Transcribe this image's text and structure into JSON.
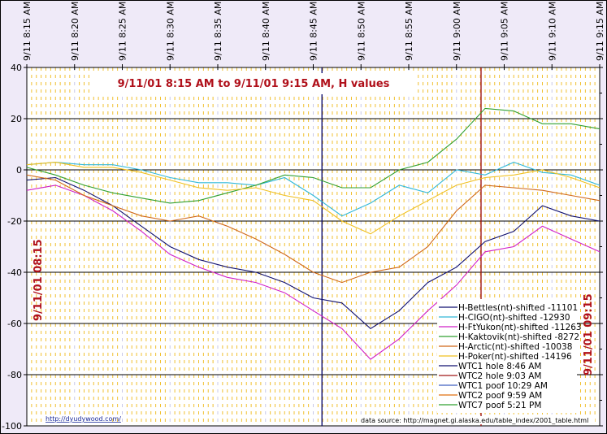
{
  "chart_data": {
    "type": "line",
    "title": "9/11/01 8:15 AM  to  9/11/01 9:15 AM, H values",
    "xlabel": "",
    "ylabel": "",
    "ylim": [
      -100,
      40
    ],
    "yticks": [
      "40",
      "20",
      "0",
      "-20",
      "-40",
      "-60",
      "-80",
      "-100"
    ],
    "xticks": [
      "9/11 8:15 AM",
      "9/11 8:20 AM",
      "9/11 8:25 AM",
      "9/11 8:30 AM",
      "9/11 8:35 AM",
      "9/11 8:40 AM",
      "9/11 8:45 AM",
      "9/11 8:50 AM",
      "9/11 8:55 AM",
      "9/11 9:00 AM",
      "9/11 9:05 AM",
      "9/11 9:10 AM",
      "9/11 9:15 AM"
    ],
    "grid": true,
    "legend_position": "lower-right",
    "left_label": "9/11/01 08:15",
    "right_label": "9/11/01 09:15",
    "x_minutes": [
      0,
      3,
      6,
      9,
      12,
      15,
      18,
      21,
      24,
      27,
      30,
      33,
      36,
      39,
      42,
      45,
      48,
      51,
      54,
      57,
      60
    ],
    "series": [
      {
        "name": "H-Bettles(nt)-shifted -11101",
        "color": "#101070",
        "values": [
          -4,
          -3,
          -8,
          -14,
          -22,
          -30,
          -35,
          -38,
          -40,
          -44,
          -50,
          -52,
          -62,
          -55,
          -44,
          -38,
          -28,
          -24,
          -14,
          -18,
          -20
        ]
      },
      {
        "name": "H-CIGO(nt)-shifted -12930",
        "color": "#30b8d8",
        "values": [
          2,
          3,
          2,
          2,
          0,
          -3,
          -5,
          -5,
          -6,
          -3,
          -10,
          -18,
          -13,
          -6,
          -9,
          0,
          -2,
          3,
          -1,
          -2,
          -6
        ]
      },
      {
        "name": "H-FtYukon(nt)-shifted -11263",
        "color": "#d020c8",
        "values": [
          -8,
          -6,
          -10,
          -16,
          -24,
          -33,
          -38,
          -42,
          -44,
          -48,
          -55,
          -62,
          -74,
          -66,
          -55,
          -45,
          -32,
          -30,
          -22,
          -27,
          -32
        ]
      },
      {
        "name": "H-Kaktovik(nt)-shifted -8272",
        "color": "#30a030",
        "values": [
          1,
          -2,
          -6,
          -9,
          -11,
          -13,
          -12,
          -9,
          -6,
          -2,
          -3,
          -7,
          -7,
          0,
          3,
          12,
          24,
          23,
          18,
          18,
          16
        ]
      },
      {
        "name": "H-Arctic(nt)-shifted -10038",
        "color": "#d06818",
        "values": [
          -2,
          -4,
          -10,
          -14,
          -18,
          -20,
          -18,
          -22,
          -27,
          -33,
          -40,
          -44,
          -40,
          -38,
          -30,
          -16,
          -6,
          -7,
          -8,
          -10,
          -12
        ]
      },
      {
        "name": "H-Poker(nt)-shifted -14196",
        "color": "#f0c020",
        "values": [
          2,
          3,
          1,
          1,
          -1,
          -4,
          -7,
          -8,
          -7,
          -10,
          -12,
          -20,
          -25,
          -18,
          -12,
          -6,
          -3,
          -2,
          0,
          -3,
          -7
        ]
      }
    ],
    "event_lines": [
      {
        "name": "WTC1 hole 8:46 AM",
        "color": "#101070",
        "x_minute": 31
      },
      {
        "name": "WTC2 hole 9:03 AM",
        "color": "#a01818",
        "x_minute": 48
      }
    ],
    "extra_legend": [
      {
        "name": "WTC1 poof 10:29 AM",
        "color": "#4060c0"
      },
      {
        "name": "WTC2 poof 9:59 AM",
        "color": "#e07010"
      },
      {
        "name": "WTC7 poof 5:21 PM",
        "color": "#30a030"
      }
    ]
  },
  "footer": {
    "left_link": "http://dyudywood.com/",
    "right_source": "data source:  http://magnet.gi.alaska.edu/table_index/2001_table.html"
  }
}
